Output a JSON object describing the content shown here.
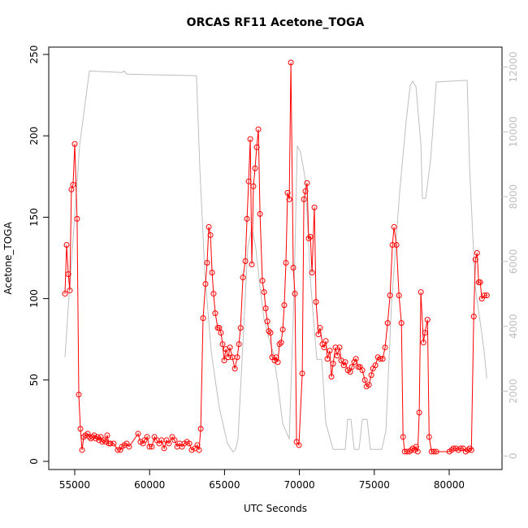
{
  "chart_data": {
    "type": "line",
    "title": "ORCAS RF11 Acetone_TOGA",
    "xlabel": "UTC Seconds",
    "ylabel": "Acetone_TOGA",
    "xlim": [
      53265,
      83525
    ],
    "xticks": [
      55000,
      60000,
      65000,
      70000,
      75000,
      80000
    ],
    "ylim": [
      -5,
      254.5
    ],
    "yticks": [
      0,
      50,
      100,
      150,
      200,
      250
    ],
    "y2lim": [
      -418,
      12614
    ],
    "y2ticks": [
      0,
      2000,
      4000,
      6000,
      8000,
      10000,
      12000
    ],
    "y2color": "#bebebe",
    "series": [
      {
        "color": "#bebebe",
        "axis": "y2",
        "x": [
          54350,
          54620,
          55000,
          55330,
          55700,
          55980,
          58150,
          58310,
          58470,
          63130,
          63350,
          63680,
          64110,
          64650,
          65190,
          65570,
          65740,
          65900,
          66280,
          66550,
          66820,
          67090,
          67370,
          67640,
          67910,
          68230,
          68560,
          68880,
          69320,
          69650,
          69860,
          70080,
          70400,
          70730,
          71160,
          71490,
          71760,
          72250,
          73060,
          73220,
          73440,
          73660,
          73980,
          74200,
          74520,
          74740,
          75500,
          75770,
          76150,
          76690,
          77130,
          77400,
          77560,
          77780,
          78110,
          78210,
          78430,
          78760,
          79140,
          81200,
          81360,
          81740,
          82120,
          82330,
          82510
        ],
        "values": [
          3050,
          4950,
          7400,
          9600,
          10900,
          11880,
          11830,
          11880,
          11780,
          11730,
          8880,
          5680,
          3220,
          1500,
          390,
          120,
          200,
          520,
          3960,
          6420,
          7040,
          6420,
          5190,
          4210,
          3710,
          3220,
          2240,
          1010,
          520,
          5190,
          9570,
          9370,
          8510,
          5440,
          2980,
          2980,
          1010,
          200,
          200,
          1130,
          1130,
          200,
          200,
          1130,
          1130,
          200,
          200,
          760,
          4700,
          8140,
          10360,
          11440,
          11560,
          11390,
          9620,
          7950,
          7950,
          9130,
          11540,
          11590,
          8880,
          5190,
          3960,
          3220,
          2390
        ]
      },
      {
        "color": "#ff0000",
        "markers": true,
        "x": [
          54350,
          54460,
          54570,
          54670,
          54780,
          54890,
          55000,
          55160,
          55270,
          55380,
          55490,
          55600,
          55710,
          55870,
          55980,
          56080,
          56190,
          56300,
          56410,
          56520,
          56630,
          56740,
          56840,
          56950,
          57060,
          57170,
          57280,
          57390,
          57600,
          57870,
          58040,
          58150,
          58310,
          58470,
          58630,
          59230,
          59390,
          59560,
          59660,
          59830,
          59990,
          60150,
          60320,
          60480,
          60640,
          60800,
          60970,
          61130,
          61290,
          61510,
          61670,
          61840,
          62000,
          62160,
          62320,
          62490,
          62650,
          62810,
          63030,
          63190,
          63300,
          63410,
          63570,
          63730,
          63840,
          63950,
          64060,
          64170,
          64270,
          64380,
          64550,
          64650,
          64760,
          64870,
          64980,
          65090,
          65250,
          65360,
          65520,
          65690,
          65850,
          65960,
          66070,
          66230,
          66390,
          66500,
          66610,
          66720,
          66820,
          66930,
          67040,
          67150,
          67260,
          67370,
          67530,
          67640,
          67750,
          67860,
          67960,
          68070,
          68180,
          68340,
          68450,
          68560,
          68670,
          68780,
          68890,
          68990,
          69100,
          69210,
          69320,
          69430,
          69590,
          69700,
          69810,
          69970,
          70190,
          70300,
          70400,
          70510,
          70620,
          70730,
          70840,
          71000,
          71110,
          71270,
          71380,
          71540,
          71650,
          71760,
          71870,
          72030,
          72140,
          72250,
          72410,
          72520,
          72680,
          72790,
          72960,
          73060,
          73230,
          73390,
          73500,
          73660,
          73770,
          73930,
          74040,
          74200,
          74370,
          74480,
          74640,
          74800,
          74910,
          75070,
          75240,
          75400,
          75560,
          75720,
          75890,
          76050,
          76210,
          76320,
          76480,
          76650,
          76810,
          76920,
          77030,
          77190,
          77350,
          77460,
          77570,
          77680,
          77790,
          77900,
          78000,
          78110,
          78280,
          78380,
          78550,
          78660,
          78820,
          78980,
          79140,
          80010,
          80170,
          80280,
          80450,
          80610,
          80770,
          80930,
          81100,
          81260,
          81370,
          81480,
          81640,
          81750,
          81860,
          81970,
          82070,
          82180,
          82350,
          82510
        ],
        "values": [
          103,
          133,
          115,
          105,
          167,
          170,
          195,
          149,
          41,
          20,
          7,
          15,
          16,
          17,
          15,
          14,
          15,
          16,
          14,
          15,
          13,
          15,
          12,
          13,
          12,
          16,
          11,
          11,
          11,
          7,
          7,
          9,
          10,
          11,
          9,
          17,
          12,
          11,
          13,
          15,
          9,
          9,
          15,
          13,
          11,
          13,
          8,
          13,
          11,
          15,
          13,
          9,
          11,
          9,
          11,
          12,
          11,
          7,
          8,
          10,
          7,
          20,
          88,
          109,
          122,
          144,
          139,
          116,
          103,
          91,
          82,
          82,
          79,
          72,
          62,
          69,
          64,
          70,
          64,
          57,
          64,
          72,
          82,
          113,
          123,
          149,
          172,
          198,
          121,
          169,
          180,
          193,
          204,
          152,
          111,
          104,
          94,
          86,
          80,
          79,
          64,
          62,
          64,
          61,
          72,
          73,
          81,
          96,
          122,
          165,
          161,
          245,
          119,
          103,
          12,
          10,
          54,
          161,
          166,
          171,
          137,
          138,
          116,
          156,
          98,
          78,
          82,
          72,
          70,
          74,
          63,
          68,
          52,
          60,
          70,
          65,
          70,
          62,
          59,
          61,
          56,
          55,
          58,
          61,
          63,
          58,
          58,
          56,
          50,
          46,
          47,
          53,
          57,
          59,
          64,
          63,
          63,
          70,
          85,
          102,
          133,
          144,
          133,
          102,
          85,
          15,
          6,
          6,
          6,
          7,
          8,
          7,
          9,
          6,
          30,
          104,
          73,
          79,
          87,
          15,
          6,
          6,
          6,
          6,
          7,
          8,
          8,
          7,
          8,
          8,
          6,
          7,
          8,
          7,
          89,
          124,
          128,
          110,
          110,
          100,
          102,
          102
        ]
      }
    ]
  }
}
